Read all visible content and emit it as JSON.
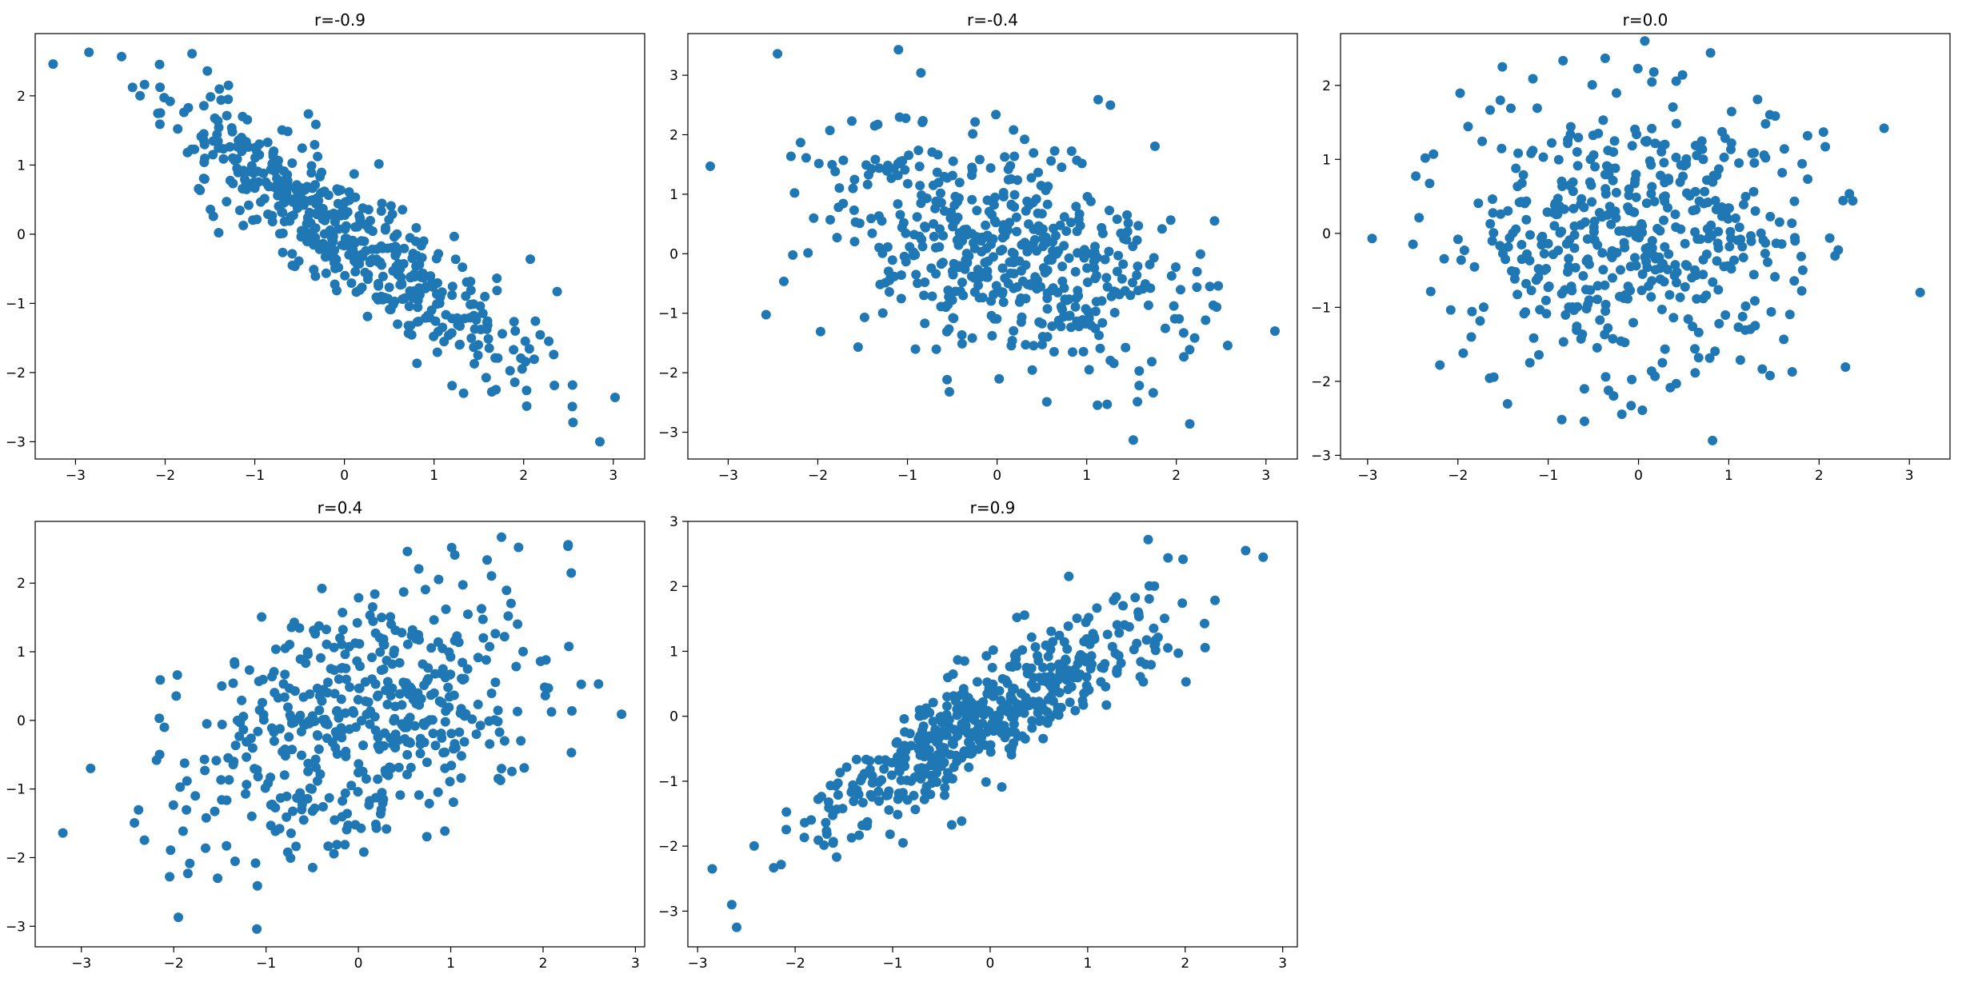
{
  "chart_data": [
    {
      "type": "scatter",
      "title": "r=-0.9",
      "r": -0.9,
      "point_count": 500,
      "seed": 11,
      "xlim": [
        -3.45,
        3.35
      ],
      "ylim": [
        -3.25,
        2.9
      ],
      "xticks": [
        -3,
        -2,
        -1,
        0,
        1,
        2,
        3
      ],
      "yticks": [
        -3,
        -2,
        -1,
        0,
        1,
        2
      ],
      "marker_color": "#1f77b4",
      "outliers": [
        [
          -3.25,
          2.46
        ],
        [
          -2.85,
          2.63
        ],
        [
          -1.7,
          2.61
        ],
        [
          2.55,
          -2.72
        ],
        [
          2.85,
          -3.0
        ],
        [
          3.02,
          -2.36
        ]
      ]
    },
    {
      "type": "scatter",
      "title": "r=-0.4",
      "r": -0.4,
      "point_count": 500,
      "seed": 23,
      "xlim": [
        -3.45,
        3.35
      ],
      "ylim": [
        -3.45,
        3.7
      ],
      "xticks": [
        -3,
        -2,
        -1,
        0,
        1,
        2,
        3
      ],
      "yticks": [
        -3,
        -2,
        -1,
        0,
        1,
        2,
        3
      ],
      "marker_color": "#1f77b4",
      "outliers": [
        [
          -2.45,
          3.36
        ],
        [
          -1.1,
          3.43
        ],
        [
          -0.85,
          3.04
        ],
        [
          -3.2,
          1.47
        ],
        [
          1.52,
          -3.13
        ],
        [
          2.15,
          -2.86
        ],
        [
          3.1,
          -1.3
        ]
      ]
    },
    {
      "type": "scatter",
      "title": "r=0.0",
      "r": 0.0,
      "point_count": 500,
      "seed": 37,
      "xlim": [
        -3.3,
        3.45
      ],
      "ylim": [
        -3.05,
        2.7
      ],
      "xticks": [
        -3,
        -2,
        -1,
        0,
        1,
        2,
        3
      ],
      "yticks": [
        -3,
        -2,
        -1,
        0,
        1,
        2
      ],
      "marker_color": "#1f77b4",
      "outliers": [
        [
          -2.95,
          -0.07
        ],
        [
          0.07,
          2.6
        ],
        [
          0.82,
          -2.8
        ],
        [
          2.72,
          1.42
        ],
        [
          3.12,
          -0.8
        ],
        [
          -2.2,
          -1.78
        ]
      ]
    },
    {
      "type": "scatter",
      "title": "r=0.4",
      "r": 0.4,
      "point_count": 500,
      "seed": 53,
      "xlim": [
        -3.5,
        3.1
      ],
      "ylim": [
        -3.3,
        2.9
      ],
      "xticks": [
        -3,
        -2,
        -1,
        0,
        1,
        2,
        3
      ],
      "yticks": [
        -3,
        -2,
        -1,
        0,
        1,
        2
      ],
      "marker_color": "#1f77b4",
      "outliers": [
        [
          -3.2,
          -1.64
        ],
        [
          -1.95,
          -2.87
        ],
        [
          -1.1,
          -3.04
        ],
        [
          1.55,
          2.67
        ],
        [
          2.85,
          0.09
        ],
        [
          2.6,
          0.53
        ],
        [
          -2.9,
          -0.7
        ]
      ]
    },
    {
      "type": "scatter",
      "title": "r=0.9",
      "r": 0.9,
      "point_count": 500,
      "seed": 71,
      "xlim": [
        -3.1,
        3.15
      ],
      "ylim": [
        -3.55,
        3.0
      ],
      "xticks": [
        -3,
        -2,
        -1,
        0,
        1,
        2,
        3
      ],
      "yticks": [
        -3,
        -2,
        -1,
        0,
        1,
        2,
        3
      ],
      "marker_color": "#1f77b4",
      "outliers": [
        [
          -2.85,
          -2.35
        ],
        [
          -2.6,
          -3.25
        ],
        [
          -2.65,
          -2.9
        ],
        [
          1.62,
          2.72
        ],
        [
          2.62,
          2.55
        ],
        [
          2.8,
          2.45
        ]
      ]
    }
  ]
}
